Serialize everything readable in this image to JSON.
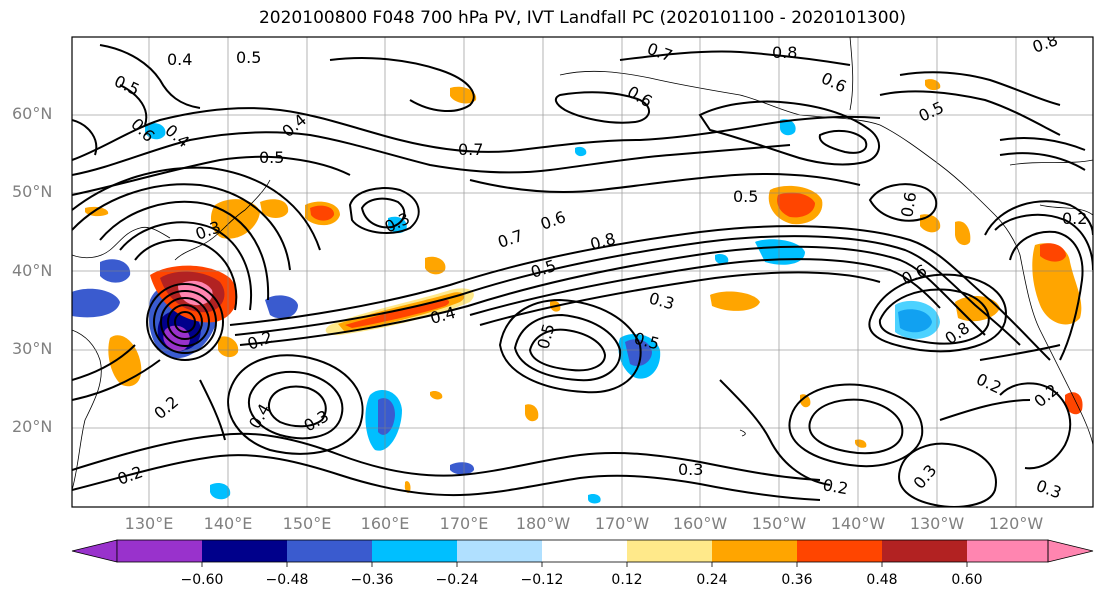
{
  "title": "2020100800 F048 700 hPa PV, IVT Landfall PC (2020101100 - 2020101300)",
  "lat_labels": [
    "20°N",
    "30°N",
    "40°N",
    "50°N",
    "60°N"
  ],
  "lon_labels": [
    "130°E",
    "140°E",
    "150°E",
    "160°E",
    "170°E",
    "180°W",
    "170°W",
    "160°W",
    "150°W",
    "140°W",
    "130°W",
    "120°W"
  ],
  "colorbar": {
    "ticks": [
      "−0.60",
      "−0.48",
      "−0.36",
      "−0.24",
      "−0.12",
      "0.12",
      "0.24",
      "0.36",
      "0.48",
      "0.60"
    ],
    "colors": [
      "#9932cc",
      "#00008b",
      "#3a5bcf",
      "#00bfff",
      "#b0e0ff",
      "#ffffff",
      "#ffe98a",
      "#ffa500",
      "#ff4500",
      "#b22222",
      "#ff85b0"
    ]
  },
  "contour_labels": [
    "0.4",
    "0.5",
    "0.5",
    "0.6",
    "0.4",
    "0.5",
    "0.7",
    "0.7",
    "0.8",
    "0.6",
    "0.8",
    "0.6",
    "0.5",
    "0.4",
    "0.3",
    "0.6",
    "0.5",
    "0.7",
    "0.8",
    "0.5",
    "0.3",
    "0.4",
    "0.2",
    "0.5",
    "0.3",
    "0.6",
    "0.8",
    "0.2",
    "0.2",
    "0.5",
    "0.2",
    "0.4",
    "0.3",
    "0.2",
    "0.3",
    "0.3",
    "0.2",
    "0.3",
    "0.2",
    "0.6"
  ]
}
